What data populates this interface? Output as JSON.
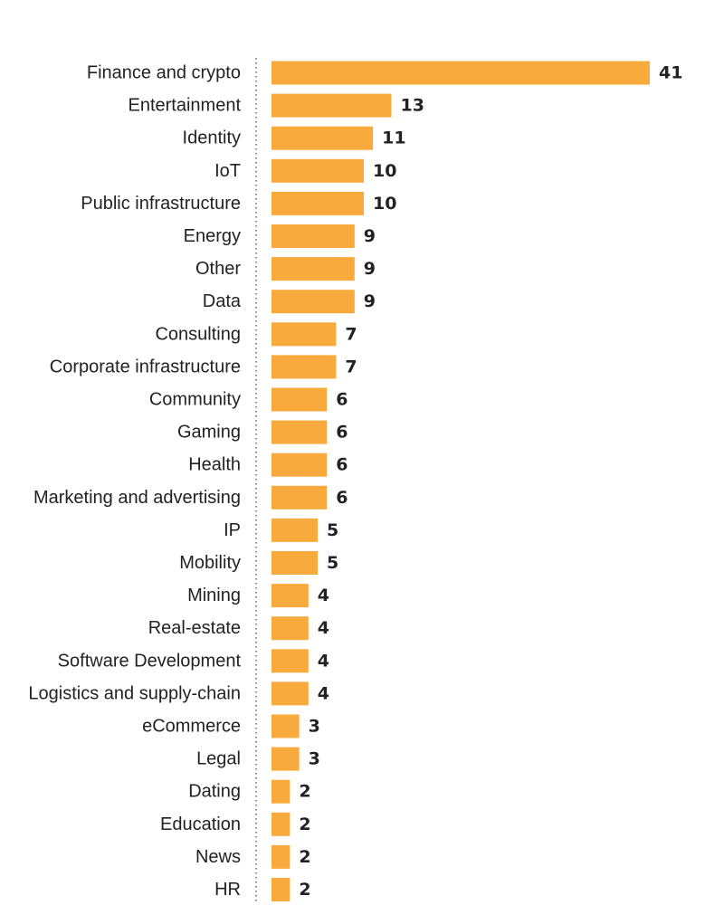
{
  "chart_data": {
    "type": "bar",
    "orientation": "horizontal",
    "title": "",
    "xlabel": "",
    "ylabel": "",
    "categories": [
      "Finance and crypto",
      "Entertainment",
      "Identity",
      "IoT",
      "Public infrastructure",
      "Energy",
      "Other",
      "Data",
      "Consulting",
      "Corporate infrastructure",
      "Community",
      "Gaming",
      "Health",
      "Marketing and advertising",
      "IP",
      "Mobility",
      "Mining",
      "Real-estate",
      "Software Development",
      "Logistics and supply-chain",
      "eCommerce",
      "Legal",
      "Dating",
      "Education",
      "News",
      "HR"
    ],
    "values": [
      41,
      13,
      11,
      10,
      10,
      9,
      9,
      9,
      7,
      7,
      6,
      6,
      6,
      6,
      5,
      5,
      4,
      4,
      4,
      4,
      3,
      3,
      2,
      2,
      2,
      2
    ],
    "xlim": [
      0,
      41
    ],
    "grid": false,
    "legend": "none",
    "data_labels": true,
    "bar_color": "#F9AA3C",
    "text_color": "#222222"
  }
}
